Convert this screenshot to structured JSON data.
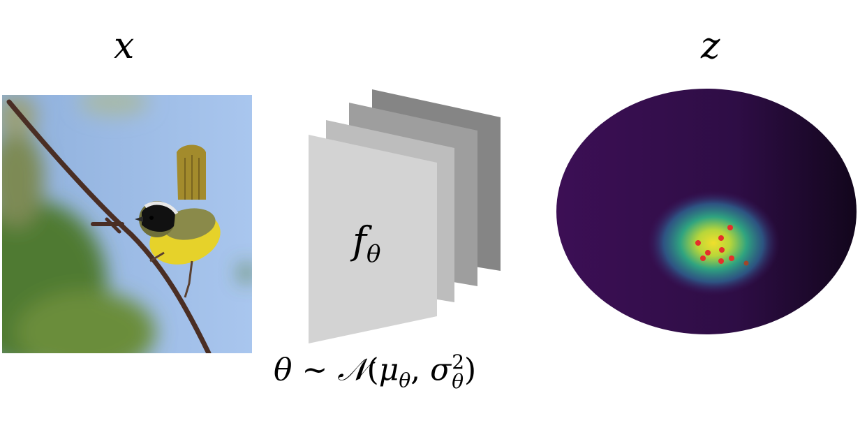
{
  "labels": {
    "input": "x",
    "output": "z",
    "network": "f",
    "network_subscript": "θ"
  },
  "formula": {
    "lhs": "θ",
    "tilde": "~",
    "dist": "𝒩",
    "open": "(",
    "mu": "μ",
    "mu_sub": "θ",
    "comma": ",",
    "sigma": "σ",
    "sigma_sup": "2",
    "sigma_sub": "θ",
    "close": ")"
  },
  "colors": {
    "sky": "#a9c6ee",
    "foliage": "#4f7a30",
    "bird_yellow": "#e6d22a",
    "layer_front": "#d3d3d3",
    "layer_2": "#bdbdbd",
    "layer_3": "#9e9e9e",
    "layer_back": "#858585",
    "latent_bg": "#3a0d52",
    "density_peak": "#f0df2c",
    "samples": "#e4302b"
  },
  "icons": {
    "input_image": "bird-photo-icon",
    "network": "stacked-layers-icon",
    "latent": "latent-density-icon"
  }
}
